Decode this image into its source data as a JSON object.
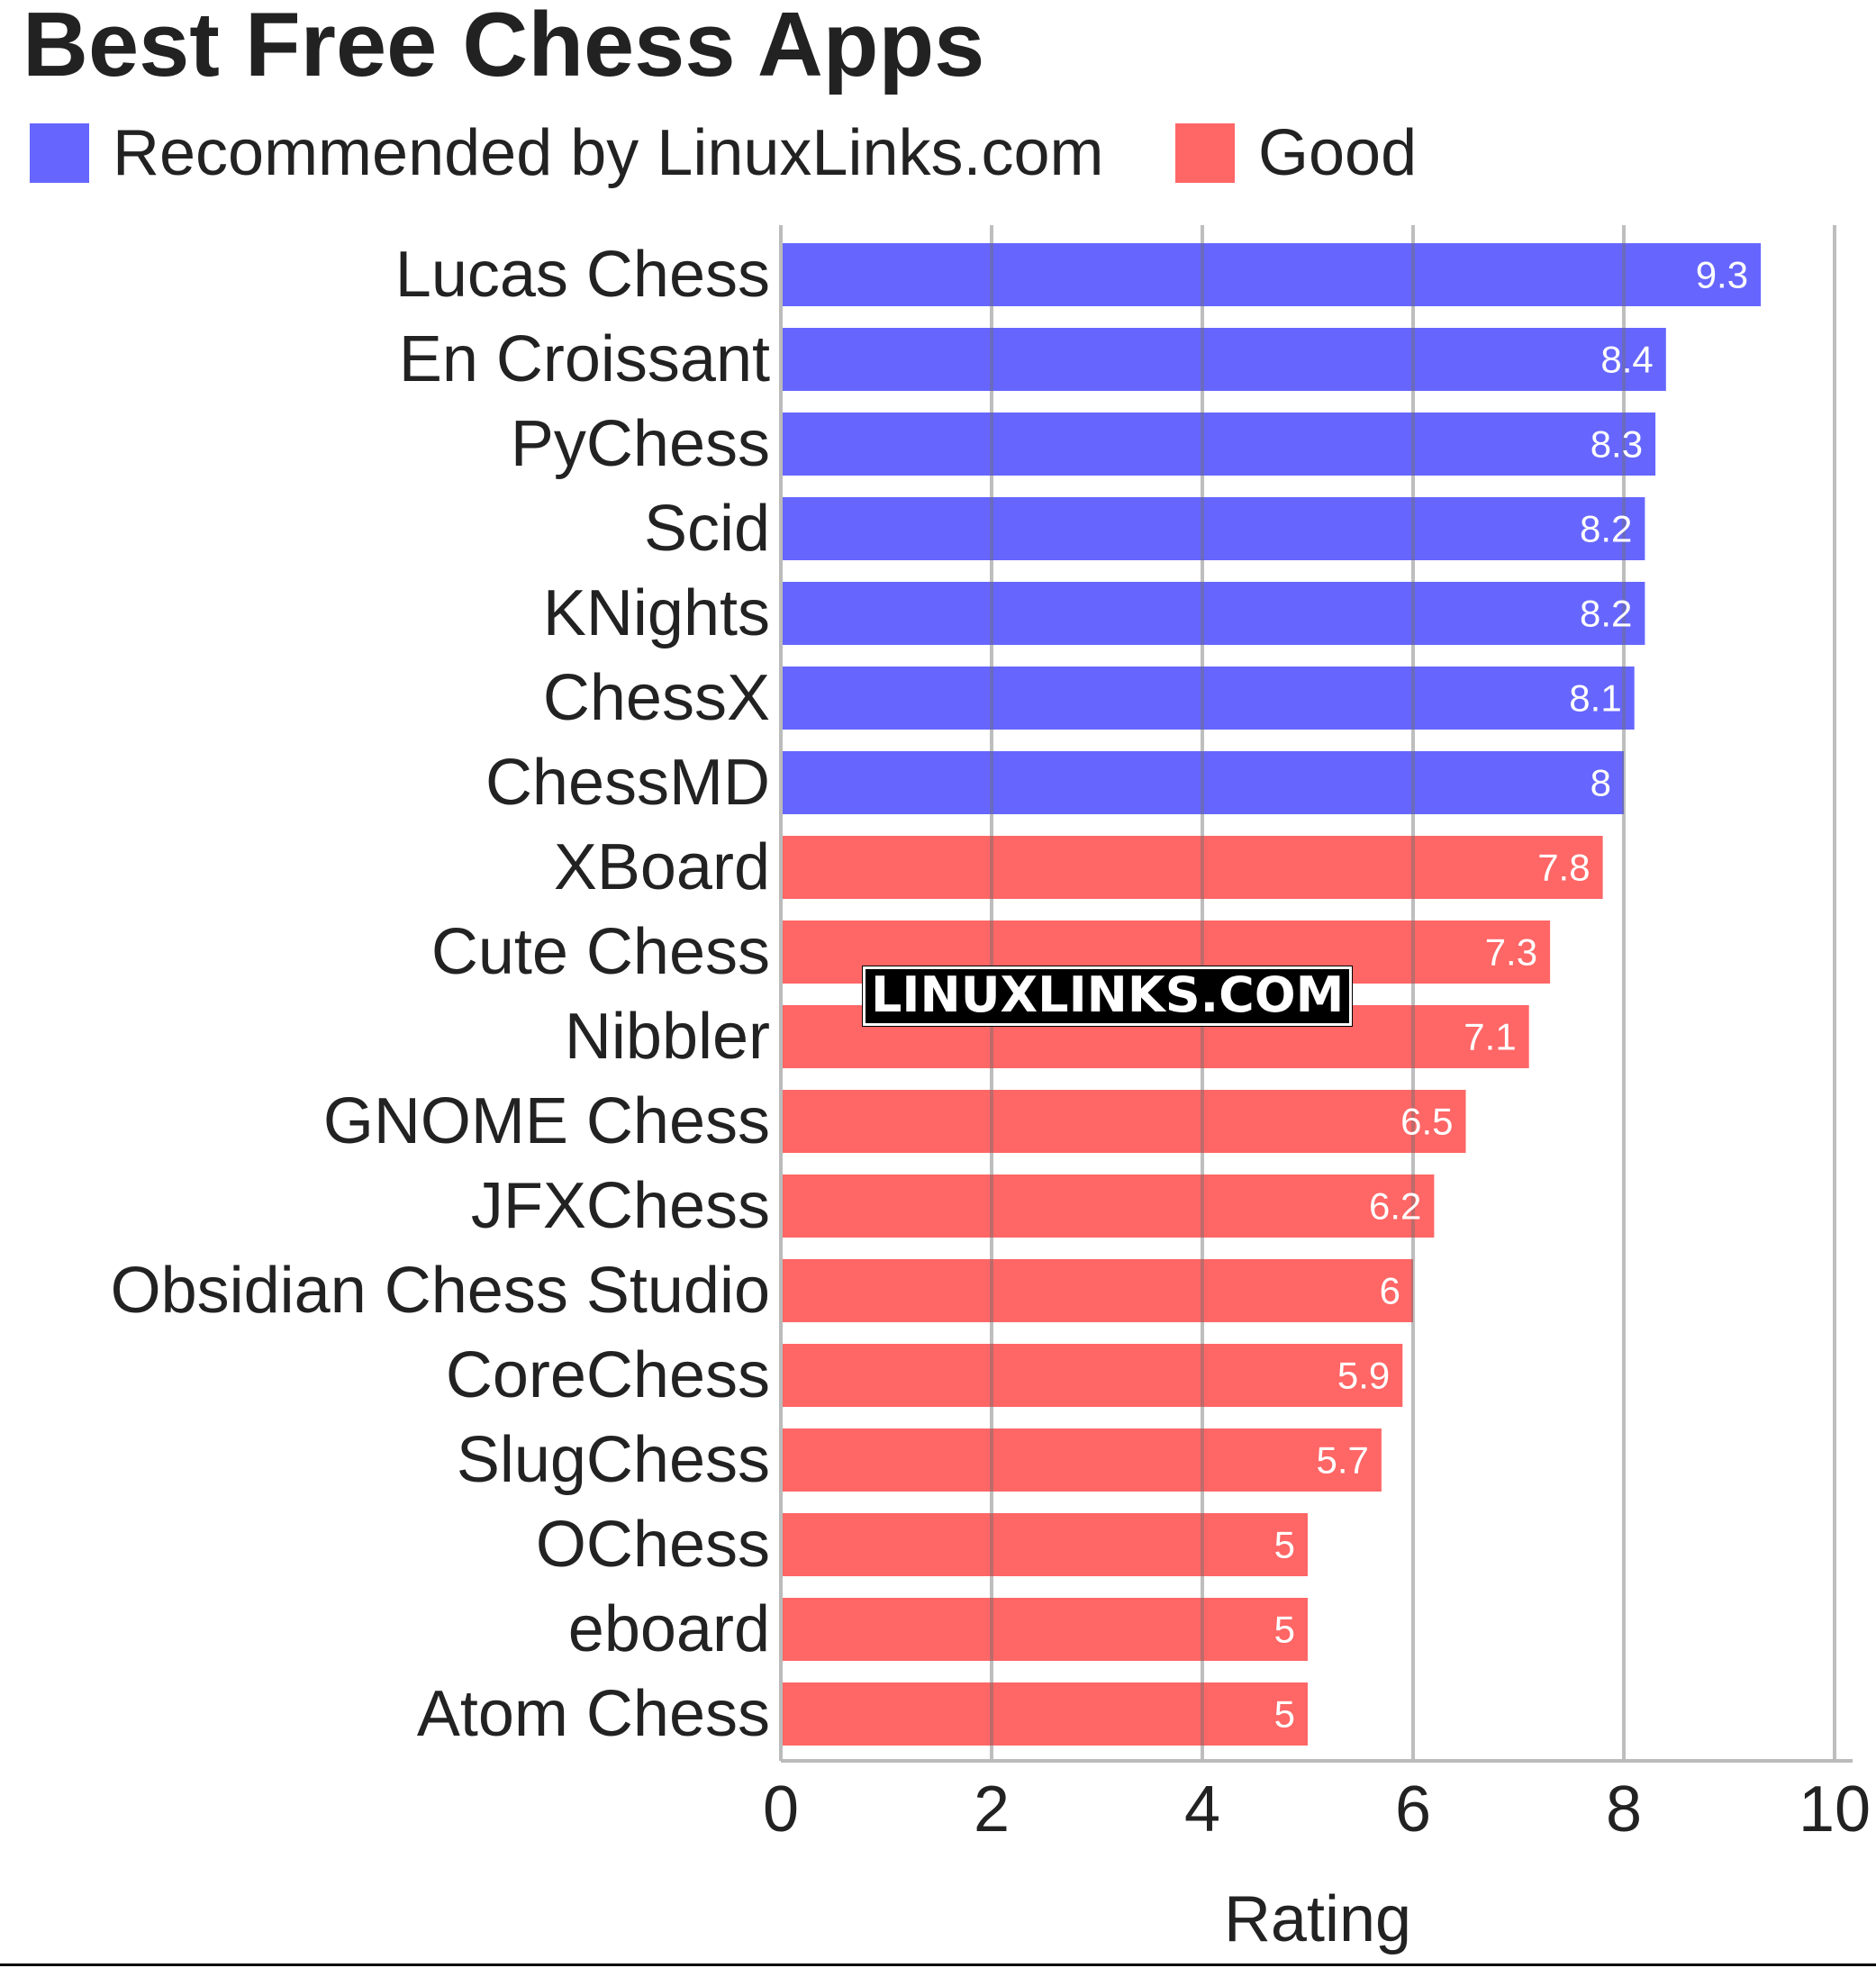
{
  "title": "Best Free Chess Apps",
  "legend": [
    {
      "label": "Recommended by LinuxLinks.com",
      "color": "#6666ff"
    },
    {
      "label": "Good",
      "color": "#ff6666"
    }
  ],
  "watermark": "LINUXLINKS.COM",
  "chart_data": {
    "type": "bar",
    "orientation": "horizontal",
    "title": "Best Free Chess Apps",
    "xlabel": "Rating",
    "ylabel": "",
    "xlim": [
      0,
      10
    ],
    "xticks": [
      0,
      2,
      4,
      6,
      8,
      10
    ],
    "grid": "vertical",
    "legend_position": "top",
    "categories": [
      "Lucas Chess",
      "En Croissant",
      "PyChess",
      "Scid",
      "KNights",
      "ChessX",
      "ChessMD",
      "XBoard",
      "Cute Chess",
      "Nibbler",
      "GNOME Chess",
      "JFXChess",
      "Obsidian Chess Studio",
      "CoreChess",
      "SlugChess",
      "OChess",
      "eboard",
      "Atom Chess"
    ],
    "values": [
      9.3,
      8.4,
      8.3,
      8.2,
      8.2,
      8.1,
      8,
      7.8,
      7.3,
      7.1,
      6.5,
      6.2,
      6,
      5.9,
      5.7,
      5,
      5,
      5
    ],
    "data_labels": [
      "9.3",
      "8.4",
      "8.3",
      "8.2",
      "8.2",
      "8.1",
      "8",
      "7.8",
      "7.3",
      "7.1",
      "6.5",
      "6.2",
      "6",
      "5.9",
      "5.7",
      "5",
      "5",
      "5"
    ],
    "series_group": [
      "Recommended by LinuxLinks.com",
      "Recommended by LinuxLinks.com",
      "Recommended by LinuxLinks.com",
      "Recommended by LinuxLinks.com",
      "Recommended by LinuxLinks.com",
      "Recommended by LinuxLinks.com",
      "Recommended by LinuxLinks.com",
      "Good",
      "Good",
      "Good",
      "Good",
      "Good",
      "Good",
      "Good",
      "Good",
      "Good",
      "Good",
      "Good"
    ]
  }
}
